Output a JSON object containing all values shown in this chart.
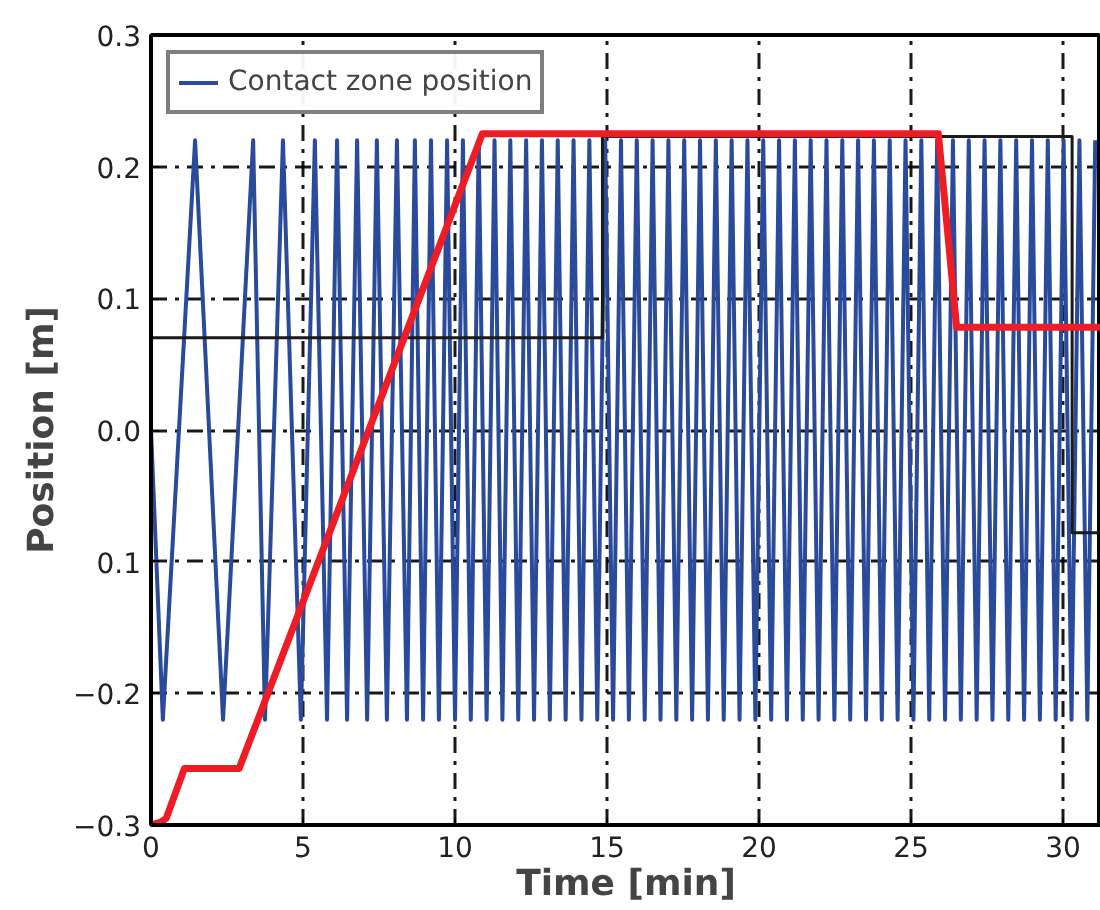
{
  "chart_data": {
    "type": "line",
    "xlabel": "Time [min]",
    "ylabel": "Position [m]",
    "xlim": [
      0,
      31.25
    ],
    "ylim": [
      -0.3,
      0.3
    ],
    "xticks": [
      0,
      5,
      10,
      15,
      20,
      25,
      30
    ],
    "yticks": [
      {
        "value": 0.3,
        "label": "0.3"
      },
      {
        "value": 0.2,
        "label": "0.2"
      },
      {
        "value": 0.1,
        "label": "0.1"
      },
      {
        "value": 0.0,
        "label": "0.0"
      },
      {
        "value": -0.1,
        "label": "0.1"
      },
      {
        "value": -0.2,
        "label": "−0.2"
      },
      {
        "value": -0.3,
        "label": "−0.3"
      }
    ],
    "grid": true,
    "legend": "top left",
    "line_style": "solid",
    "marker": "none",
    "series": [
      {
        "name": "Contact zone position",
        "color": "#2a4b9b",
        "x": [
          0,
          0.39,
          1.45,
          2.37,
          3.36,
          3.75,
          4.34,
          4.93,
          5.39,
          5.79,
          6.12,
          6.45,
          6.78,
          7.11,
          7.43,
          7.76,
          8.09,
          8.42,
          8.68,
          8.95,
          9.21,
          9.47,
          9.74,
          10.0,
          10.26,
          10.52,
          10.78,
          11.04,
          11.3,
          11.56,
          11.82,
          12.08,
          12.34,
          12.6,
          12.86,
          13.12,
          13.38,
          13.64,
          13.9,
          14.16,
          14.42,
          14.68,
          14.94,
          15.2,
          15.46,
          15.72,
          15.98,
          16.24,
          16.5,
          16.76,
          17.02,
          17.28,
          17.54,
          17.8,
          18.06,
          18.32,
          18.58,
          18.84,
          19.1,
          19.36,
          19.62,
          19.88,
          20.14,
          20.4,
          20.66,
          20.92,
          21.18,
          21.44,
          21.7,
          21.96,
          22.22,
          22.48,
          22.74,
          23.0,
          23.26,
          23.52,
          23.78,
          24.04,
          24.3,
          24.56,
          24.82,
          25.08,
          25.34,
          25.6,
          25.86,
          26.12,
          26.38,
          26.64,
          26.9,
          27.16,
          27.42,
          27.68,
          27.94,
          28.2,
          28.46,
          28.72,
          28.98,
          29.24,
          29.5,
          29.76,
          30.02,
          30.28,
          30.54,
          30.8,
          31.06
        ],
        "values": [
          0.0,
          -0.22,
          0.22,
          -0.22,
          0.22,
          -0.22,
          0.22,
          -0.22,
          0.22,
          -0.22,
          0.22,
          -0.22,
          0.22,
          -0.22,
          0.22,
          -0.22,
          0.22,
          -0.22,
          0.22,
          -0.22,
          0.22,
          -0.22,
          0.22,
          -0.22,
          0.22,
          -0.22,
          0.22,
          -0.22,
          0.22,
          -0.22,
          0.22,
          -0.22,
          0.22,
          -0.22,
          0.22,
          -0.22,
          0.22,
          -0.22,
          0.22,
          -0.22,
          0.22,
          -0.22,
          0.22,
          -0.22,
          0.22,
          -0.22,
          0.22,
          -0.22,
          0.22,
          -0.22,
          0.22,
          -0.22,
          0.22,
          -0.22,
          0.22,
          -0.22,
          0.22,
          -0.22,
          0.22,
          -0.22,
          0.22,
          -0.22,
          0.22,
          -0.22,
          0.22,
          -0.22,
          0.22,
          -0.22,
          0.22,
          -0.22,
          0.22,
          -0.22,
          0.22,
          -0.22,
          0.22,
          -0.22,
          0.22,
          -0.22,
          0.22,
          -0.22,
          0.22,
          -0.22,
          0.22,
          -0.22,
          0.22,
          -0.22,
          0.22,
          -0.22,
          0.22,
          -0.22,
          0.22,
          -0.22,
          0.22,
          -0.22,
          0.22,
          -0.22,
          0.22,
          -0.22,
          0.22,
          -0.22,
          0.22,
          -0.22,
          0.22,
          -0.22,
          0.22
        ]
      },
      {
        "color": "#1a1a1a",
        "x": [
          0,
          14.85,
          14.85,
          30.3,
          30.3,
          31.25
        ],
        "values": [
          0.07,
          0.07,
          0.223,
          0.223,
          -0.078,
          -0.078
        ]
      },
      {
        "color": "#ee1c25",
        "x": [
          0,
          0.3,
          0.5,
          1.1,
          2.9,
          10.9,
          25.9,
          26.5,
          31.25
        ],
        "values": [
          -0.3,
          -0.298,
          -0.295,
          -0.257,
          -0.257,
          0.225,
          0.225,
          0.078,
          0.078
        ]
      }
    ]
  }
}
